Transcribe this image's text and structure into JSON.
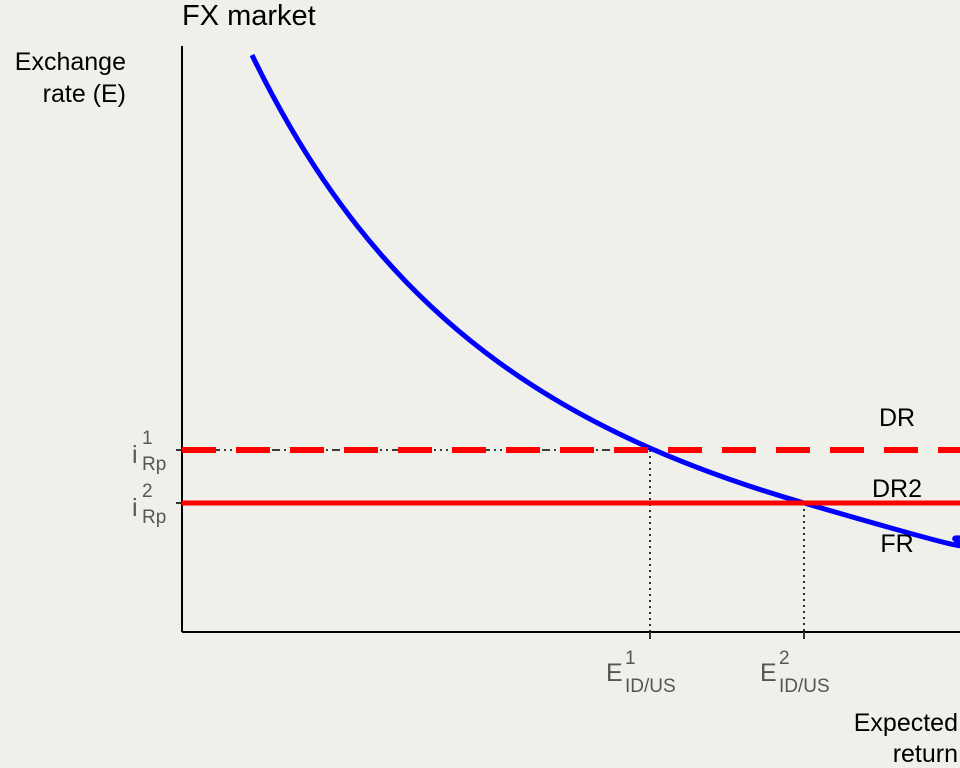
{
  "chart_data": {
    "type": "line",
    "title": "FX market",
    "ylabel_lines": [
      "Exchange",
      "rate (E)"
    ],
    "xlabel_lines": [
      "Expected",
      "return"
    ],
    "x_ticks": [
      {
        "base": "E",
        "sup": "1",
        "sub": "ID/US"
      },
      {
        "base": "E",
        "sup": "2",
        "sub": "ID/US"
      }
    ],
    "y_ticks": [
      {
        "base": "i",
        "sup": "1",
        "sub": "Rp"
      },
      {
        "base": "i",
        "sup": "2",
        "sub": "Rp"
      }
    ],
    "series": [
      {
        "name": "FR",
        "color": "#0000ff",
        "style": "solid"
      },
      {
        "name": "DR",
        "color": "#ff0000",
        "style": "dashed"
      },
      {
        "name": "DR2",
        "color": "#ff0000",
        "style": "solid"
      }
    ],
    "grid": false
  }
}
